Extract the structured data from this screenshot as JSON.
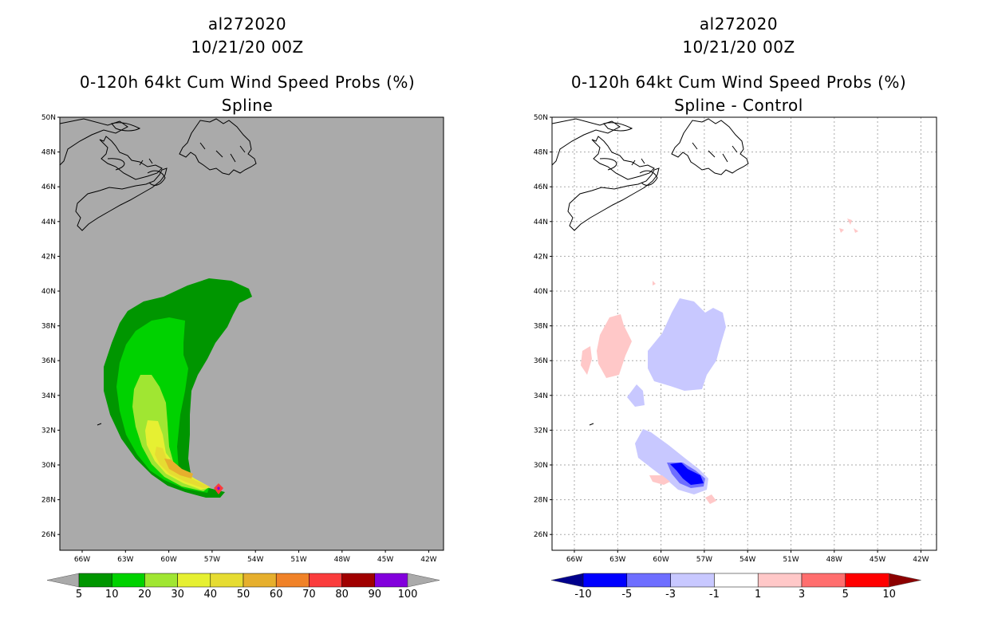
{
  "left_panel": {
    "storm_id": "al272020",
    "datetime": "10/21/20 00Z",
    "product": "0-120h 64kt Cum Wind Speed Probs (%)",
    "subtitle": "Spline"
  },
  "right_panel": {
    "storm_id": "al272020",
    "datetime": "10/21/20 00Z",
    "product": "0-120h 64kt Cum Wind Speed Probs (%)",
    "subtitle": "Spline - Control"
  },
  "map_axes": {
    "lon_ticks": [
      "66W",
      "63W",
      "60W",
      "57W",
      "54W",
      "51W",
      "48W",
      "45W",
      "42W"
    ],
    "lat_ticks": [
      "50N",
      "48N",
      "46N",
      "44N",
      "42N",
      "40N",
      "38N",
      "36N",
      "34N",
      "32N",
      "30N",
      "28N",
      "26N"
    ]
  },
  "colorbar_left": {
    "labels": [
      "5",
      "10",
      "20",
      "30",
      "40",
      "50",
      "60",
      "70",
      "80",
      "90",
      "100"
    ],
    "colors": [
      "#009600",
      "#00d200",
      "#a0e632",
      "#e6f032",
      "#e6dc32",
      "#e6af2d",
      "#f08228",
      "#fa3c3c",
      "#a00000",
      "#8200dc"
    ],
    "end_color": "#aaaaaa"
  },
  "colorbar_right": {
    "labels": [
      "-10",
      "-5",
      "-3",
      "-1",
      "1",
      "3",
      "5",
      "10"
    ],
    "colors": [
      "#0000ff",
      "#6e6eff",
      "#c8c8ff",
      "#ffffff",
      "#ffc8c8",
      "#ff6e6e",
      "#ff0000"
    ],
    "low_end_color": "#00008c",
    "high_end_color": "#8c0000"
  }
}
